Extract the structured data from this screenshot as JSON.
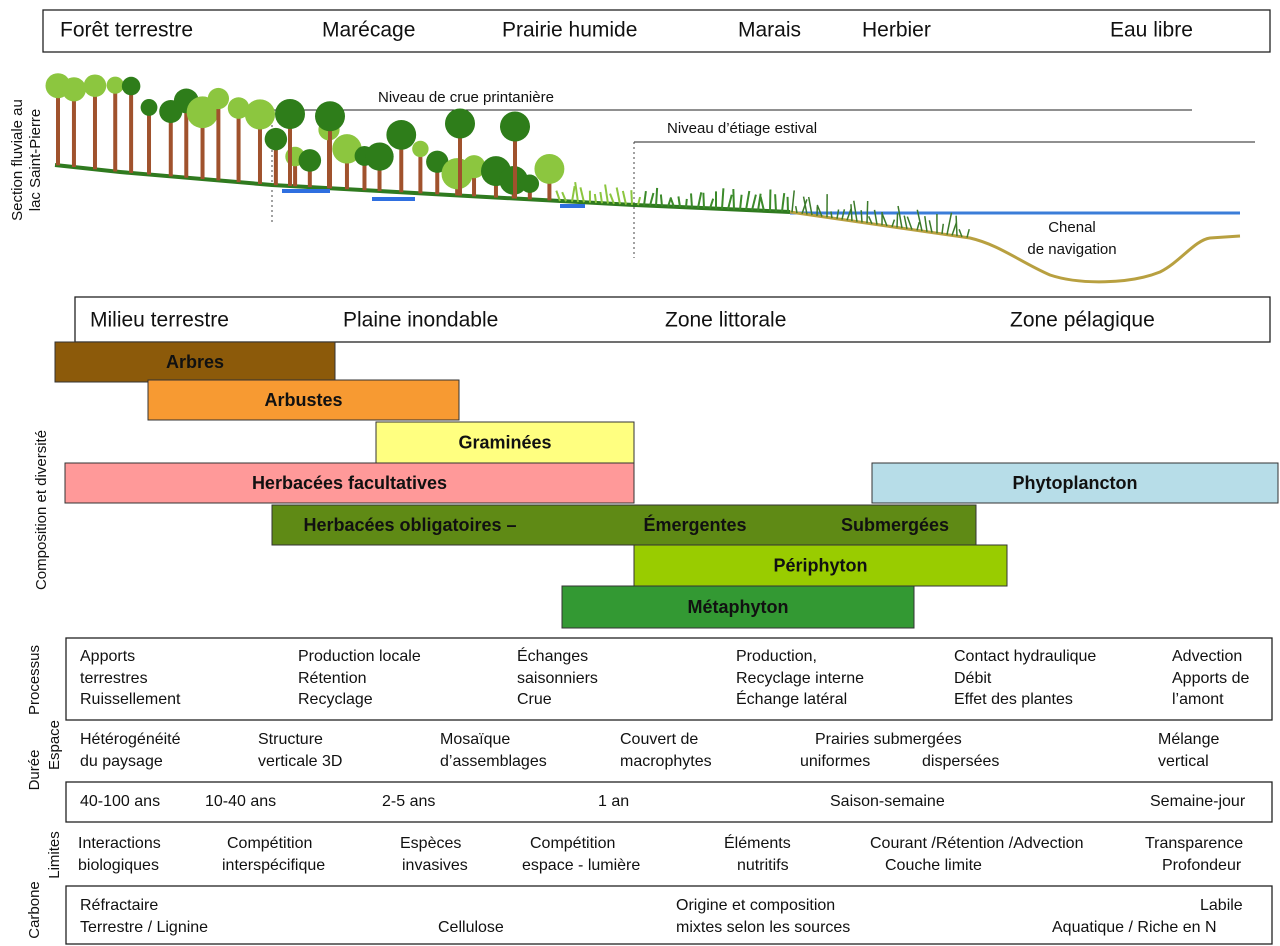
{
  "header": {
    "zones": [
      "Forêt terrestre",
      "Marécage",
      "Prairie humide",
      "Marais",
      "Herbier",
      "Eau libre"
    ]
  },
  "section": {
    "label": [
      "Section fluviale au",
      "lac Saint-Pierre"
    ],
    "spring_flood": "Niveau de crue printanière",
    "summer_low": "Niveau d’étiage estival",
    "channel": [
      "Chenal",
      "de navigation"
    ]
  },
  "environments": [
    "Milieu terrestre",
    "Plaine inondable",
    "Zone littorale",
    "Zone pélagique"
  ],
  "composition": {
    "label": "Composition et diversité",
    "bars": [
      {
        "labels": [
          "Arbres"
        ],
        "color": "#8c5a0a"
      },
      {
        "labels": [
          "Arbustes"
        ],
        "color": "#f79a32"
      },
      {
        "labels": [
          "Graminées"
        ],
        "color": "#ffff80"
      },
      {
        "labels": [
          "Herbacées facultatives"
        ],
        "color": "#ff9999"
      },
      {
        "labels": [
          "Phytoplancton"
        ],
        "color": "#b7dde8"
      },
      {
        "labels": [
          "Herbacées obligatoires –",
          "Émergentes",
          "Submergées"
        ],
        "color": "#5f8a15"
      },
      {
        "labels": [
          "Périphyton"
        ],
        "color": "#99cc00"
      },
      {
        "labels": [
          "Métaphyton"
        ],
        "color": "#339933"
      }
    ]
  },
  "rows": [
    {
      "label": "Processus",
      "cells": [
        [
          "Apports",
          "terrestres",
          "Ruissellement"
        ],
        [
          "Production locale",
          "Rétention",
          "Recyclage"
        ],
        [
          "Échanges",
          "saisonniers",
          "Crue"
        ],
        [
          "Production,",
          "Recyclage interne",
          "Échange latéral"
        ],
        [
          "Contact hydraulique",
          "Débit",
          "Effet des plantes"
        ],
        [
          "Advection",
          "Apports de",
          "l’amont"
        ]
      ]
    },
    {
      "label": "Espace",
      "cells": [
        [
          "Hétérogénéité",
          "du paysage"
        ],
        [
          "Structure",
          "verticale 3D"
        ],
        [
          "Mosaïque",
          "d’assemblages"
        ],
        [
          "Couvert de",
          "macrophytes"
        ],
        [
          "Prairies submergées",
          "uniformes",
          "dispersées"
        ],
        [
          "Mélange",
          "vertical"
        ]
      ]
    },
    {
      "label": "Durée",
      "cells": [
        [
          "40-100 ans"
        ],
        [
          "10-40 ans"
        ],
        [
          "2-5 ans"
        ],
        [
          "1 an"
        ],
        [
          "Saison-semaine"
        ],
        [
          "Semaine-jour"
        ]
      ]
    },
    {
      "label": "Limites",
      "cells": [
        [
          "Interactions",
          "biologiques"
        ],
        [
          "Compétition",
          "interspécifique"
        ],
        [
          "Espèces",
          "invasives"
        ],
        [
          "Compétition",
          "espace - lumière"
        ],
        [
          "Éléments",
          "nutritifs"
        ],
        [
          "Courant /Rétention /Advection",
          "Couche limite"
        ],
        [
          "Transparence",
          "Profondeur"
        ]
      ]
    },
    {
      "label": "Carbone",
      "cells": [
        [
          "Réfractaire",
          "Terrestre / Lignine"
        ],
        [
          "Cellulose"
        ],
        [
          "Origine et composition",
          "mixtes selon les sources"
        ],
        [
          "Labile",
          "Aquatique / Riche en N"
        ]
      ]
    }
  ]
}
